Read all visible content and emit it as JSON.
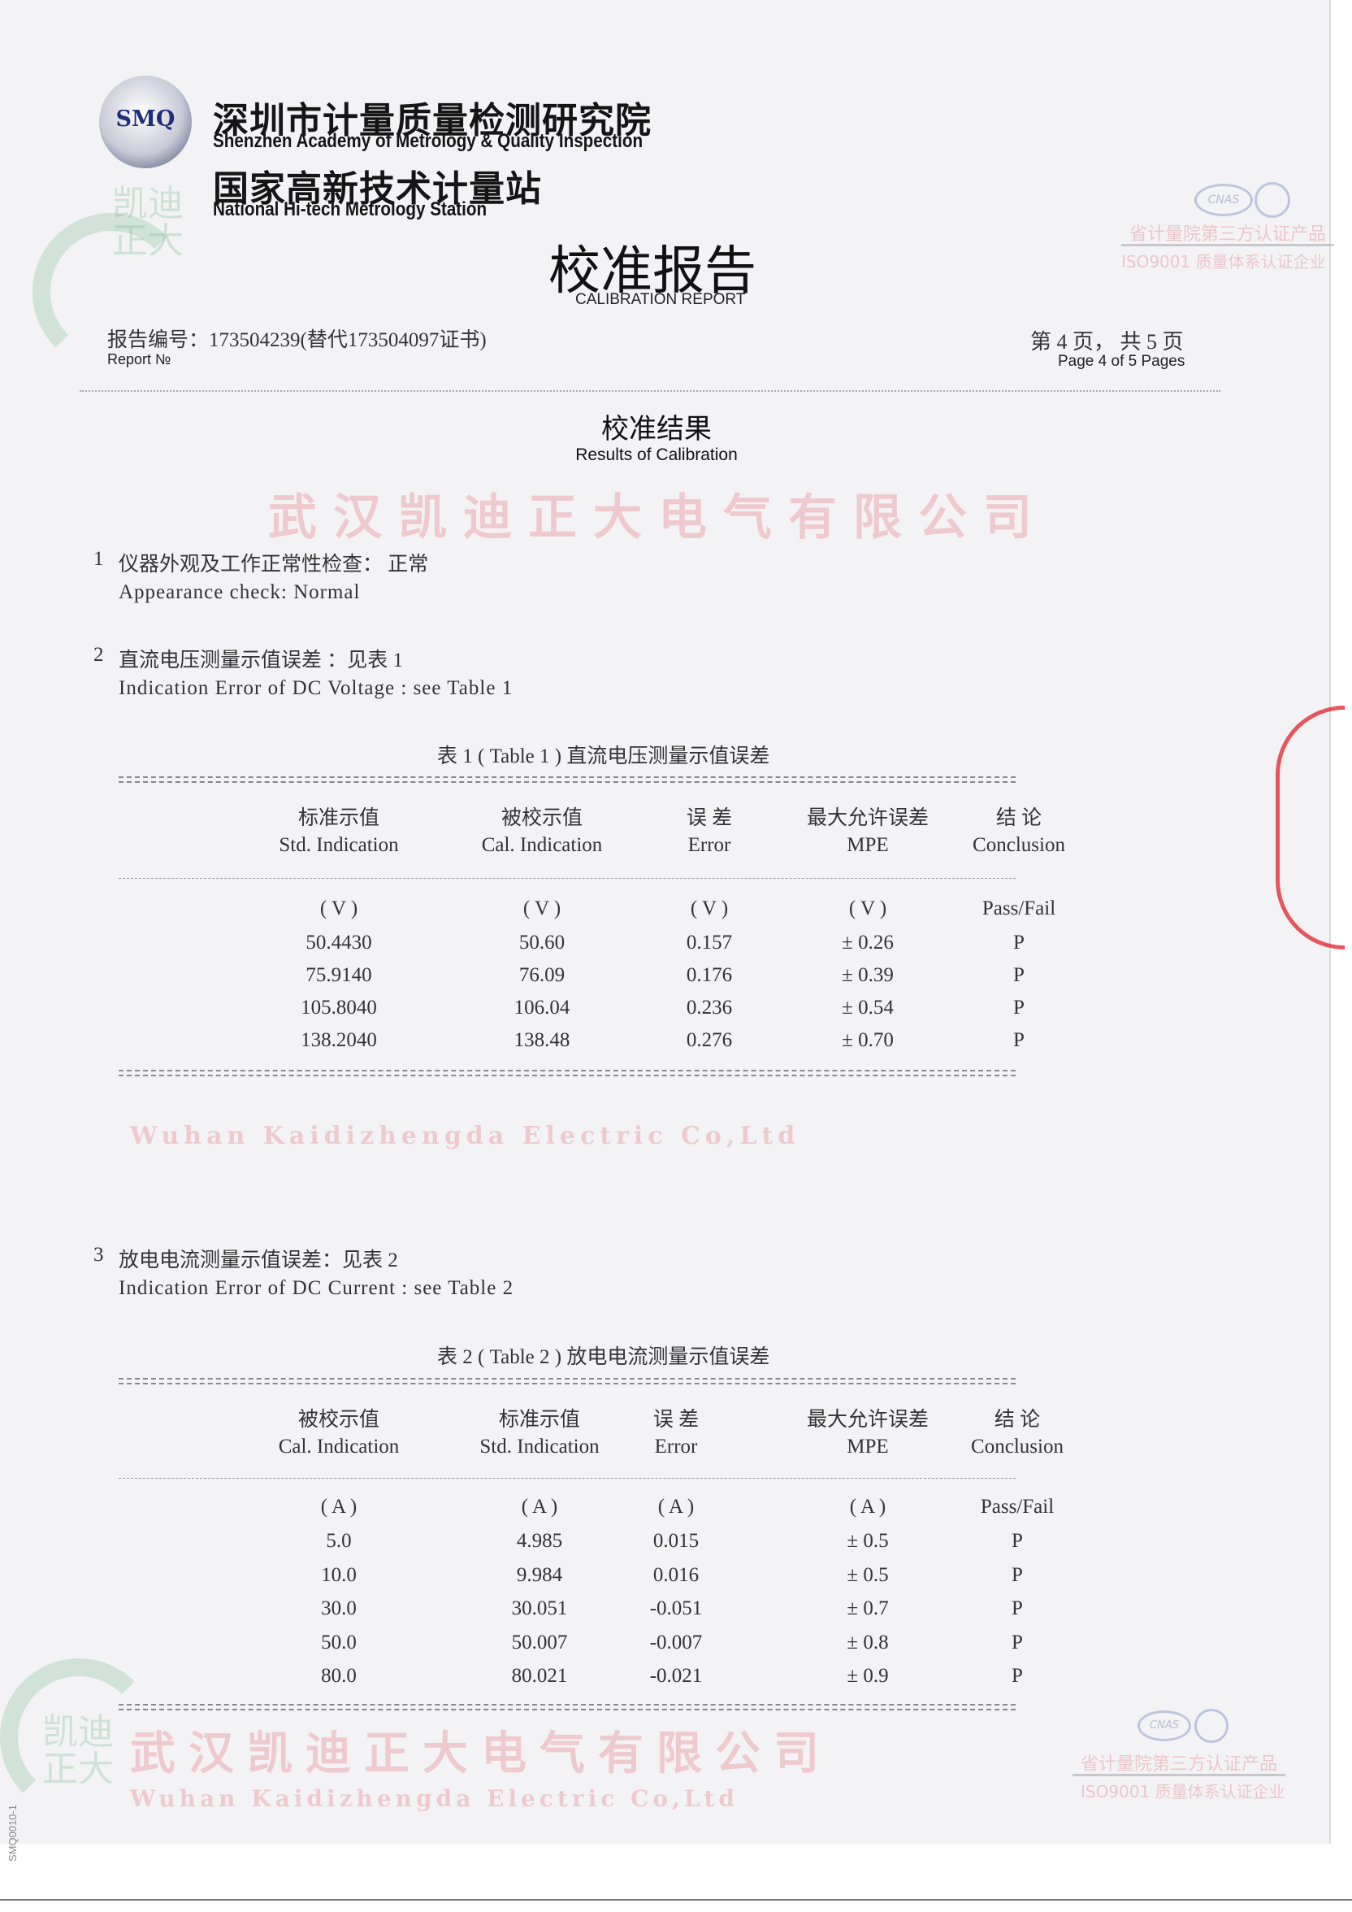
{
  "header": {
    "logo_text": "SMQ",
    "logo_ring_text": "Shenzhen Academy of Metrology & Quality Inspection",
    "institute_cn": "深圳市计量质量检测研究院",
    "institute_en": "Shenzhen Academy of Metrology & Quality Inspection",
    "station_cn": "国家高新技术计量站",
    "station_en": "National Hi-tech Metrology Station",
    "title_cn": "校准报告",
    "title_en": "CALIBRATION REPORT",
    "report_no_cn": "报告编号：173504239(替代173504097证书)",
    "report_no_en": "Report №",
    "page_cn": "第 4 页， 共 5 页",
    "page_en": "Page 4 of 5 Pages"
  },
  "section_title": {
    "cn": "校准结果",
    "en": "Results of Calibration"
  },
  "items": [
    {
      "num": "1",
      "cn": "仪器外观及工作正常性检查：  正常",
      "en": "Appearance check:  Normal"
    },
    {
      "num": "2",
      "cn": "直流电压测量示值误差 ：见表 1",
      "en": "Indication Error of  DC Voltage : see Table 1"
    },
    {
      "num": "3",
      "cn": "放电电流测量示值误差：见表 2",
      "en": "Indication Error of  DC Current : see Table 2"
    }
  ],
  "table1": {
    "caption": "表 1 ( Table 1 )   直流电压测量示值误差",
    "headers_cn": [
      "标准示值",
      "被校示值",
      "误 差",
      "最大允许误差",
      "结 论"
    ],
    "headers_en": [
      "Std. Indication",
      "Cal. Indication",
      "Error",
      "MPE",
      "Conclusion"
    ],
    "units": [
      "( V )",
      "( V )",
      "( V )",
      "( V )",
      "Pass/Fail"
    ],
    "rows": [
      [
        "50.4430",
        "50.60",
        "0.157",
        "± 0.26",
        "P"
      ],
      [
        "75.9140",
        "76.09",
        "0.176",
        "± 0.39",
        "P"
      ],
      [
        "105.8040",
        "106.04",
        "0.236",
        "± 0.54",
        "P"
      ],
      [
        "138.2040",
        "138.48",
        "0.276",
        "± 0.70",
        "P"
      ]
    ]
  },
  "table2": {
    "caption": "表 2 ( Table 2 )   放电电流测量示值误差",
    "headers_cn": [
      "被校示值",
      "标准示值",
      "误 差",
      "最大允许误差",
      "结 论"
    ],
    "headers_en": [
      "Cal. Indication",
      "Std. Indication",
      "Error",
      "MPE",
      "Conclusion"
    ],
    "units": [
      "( A )",
      "( A )",
      "( A )",
      "( A )",
      "Pass/Fail"
    ],
    "rows": [
      [
        "5.0",
        "4.985",
        "0.015",
        "± 0.5",
        "P"
      ],
      [
        "10.0",
        "9.984",
        "0.016",
        "± 0.5",
        "P"
      ],
      [
        "30.0",
        "30.051",
        "-0.051",
        "± 0.7",
        "P"
      ],
      [
        "50.0",
        "50.007",
        "-0.007",
        "± 0.8",
        "P"
      ],
      [
        "80.0",
        "80.021",
        "-0.021",
        "± 0.9",
        "P"
      ]
    ]
  },
  "watermark": {
    "company_cn": "武汉凯迪正大电气有限公司",
    "company_en": "Wuhan Kaidizhengda Electric Co,Ltd",
    "brand_cn": "凯迪正大",
    "cert_logo": "CNAS",
    "cert_line1": "省计量院第三方认证产品",
    "cert_line2": "ISO9001 质量体系认证企业"
  },
  "form_code": "SMQ0010-1",
  "colors": {
    "watermark_red": "#e13c46",
    "logo_blue": "#1f2f7a",
    "stamp_red": "#e0202a"
  }
}
